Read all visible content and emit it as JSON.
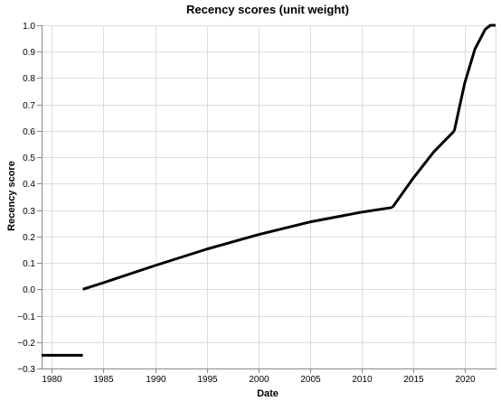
{
  "chart_data": {
    "type": "line",
    "title": "Recency scores (unit weight)",
    "xlabel": "Date",
    "ylabel": "Recency score",
    "xlim": [
      1979,
      2023
    ],
    "ylim": [
      -0.3,
      1.0
    ],
    "x_ticks": [
      1980,
      1985,
      1990,
      1995,
      2000,
      2005,
      2010,
      2015,
      2020
    ],
    "y_ticks": [
      -0.3,
      -0.2,
      -0.1,
      0.0,
      0.1,
      0.2,
      0.3,
      0.4,
      0.5,
      0.6,
      0.7,
      0.8,
      0.9,
      1.0
    ],
    "y_tick_labels": [
      "−0.3",
      "−0.2",
      "−0.1",
      "0.0",
      "0.1",
      "0.2",
      "0.3",
      "0.4",
      "0.5",
      "0.6",
      "0.7",
      "0.8",
      "0.9",
      "1.0"
    ],
    "grid": true,
    "legend": "none",
    "color": "#000000",
    "segments": [
      {
        "x": [
          1979,
          1983
        ],
        "y": [
          -0.25,
          -0.25
        ]
      },
      {
        "x": [
          1983,
          1985,
          1990,
          1995,
          2000,
          2005,
          2010,
          2013
        ],
        "y": [
          0.0,
          0.025,
          0.09,
          0.152,
          0.207,
          0.255,
          0.292,
          0.31
        ]
      },
      {
        "x": [
          2013,
          2015,
          2017,
          2019
        ],
        "y": [
          0.31,
          0.42,
          0.52,
          0.6
        ]
      },
      {
        "x": [
          2019,
          2020,
          2021,
          2022,
          2022.5,
          2023
        ],
        "y": [
          0.6,
          0.78,
          0.91,
          0.985,
          1.0,
          1.0
        ]
      }
    ]
  }
}
